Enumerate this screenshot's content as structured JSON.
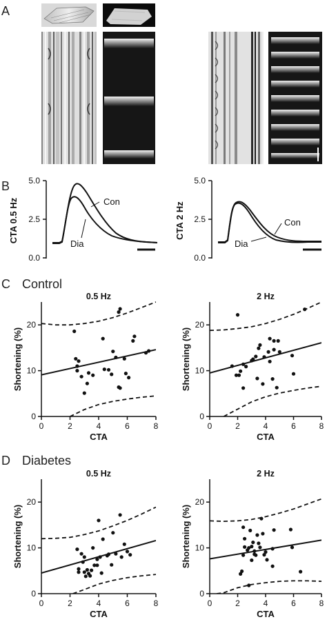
{
  "panels": {
    "a": {
      "letter": "A"
    },
    "b": {
      "letter": "B"
    },
    "c": {
      "letter": "C",
      "title": "Control"
    },
    "d": {
      "letter": "D",
      "title": "Diabetes"
    }
  },
  "traces": [
    {
      "ylabel": "CTA 0.5 Hz",
      "yticks": [
        "5.0",
        "2.5",
        "0.0"
      ],
      "labels": [
        "Con",
        "Dia"
      ],
      "ylim": [
        0,
        5
      ],
      "con_peak": 4.7,
      "dia_peak": 4.0,
      "baseline": 1.0,
      "scale_bar": true
    },
    {
      "ylabel": "CTA 2 Hz",
      "yticks": [
        "5.0",
        "2.5",
        "0.0"
      ],
      "labels": [
        "Con",
        "Dia"
      ],
      "ylim": [
        0,
        5
      ],
      "con_peak": 3.6,
      "dia_peak": 3.5,
      "baseline": 1.0,
      "scale_bar": true
    }
  ],
  "chart_data": [
    {
      "type": "scatter",
      "group": "Control",
      "title": "0.5 Hz",
      "xlabel": "CTA",
      "ylabel": "Shortening (%)",
      "xlim": [
        0,
        8
      ],
      "ylim": [
        0,
        25
      ],
      "xticks": [
        0,
        2,
        4,
        6,
        8
      ],
      "yticks": [
        0,
        10,
        20
      ],
      "points": [
        [
          2.3,
          18.6
        ],
        [
          2.4,
          12.6
        ],
        [
          2.5,
          11.0
        ],
        [
          2.5,
          10.0
        ],
        [
          2.6,
          12.1
        ],
        [
          2.8,
          8.7
        ],
        [
          3.0,
          5.1
        ],
        [
          3.2,
          7.2
        ],
        [
          3.3,
          9.5
        ],
        [
          3.6,
          9.0
        ],
        [
          4.3,
          17.0
        ],
        [
          4.4,
          10.3
        ],
        [
          4.7,
          10.2
        ],
        [
          4.9,
          9.2
        ],
        [
          5.0,
          14.2
        ],
        [
          5.2,
          12.9
        ],
        [
          5.4,
          6.4
        ],
        [
          5.4,
          22.8
        ],
        [
          5.5,
          23.5
        ],
        [
          5.5,
          6.2
        ],
        [
          5.8,
          12.6
        ],
        [
          5.9,
          9.4
        ],
        [
          6.1,
          8.5
        ],
        [
          6.4,
          16.5
        ],
        [
          6.5,
          17.5
        ],
        [
          7.3,
          13.9
        ],
        [
          7.5,
          14.3
        ]
      ],
      "fit": [
        [
          0,
          9.1
        ],
        [
          8,
          14.6
        ]
      ],
      "ci_upper": [
        [
          0,
          20.3
        ],
        [
          1,
          20.0
        ],
        [
          2,
          20.0
        ],
        [
          3,
          20.3
        ],
        [
          4,
          20.8
        ],
        [
          5,
          21.6
        ],
        [
          6,
          22.6
        ],
        [
          7,
          23.8
        ],
        [
          8,
          25.0
        ]
      ],
      "ci_lower": [
        [
          2.0,
          0.0
        ],
        [
          3,
          1.5
        ],
        [
          4,
          2.6
        ],
        [
          5,
          3.3
        ],
        [
          6,
          3.8
        ],
        [
          7,
          4.2
        ],
        [
          8,
          4.5
        ]
      ]
    },
    {
      "type": "scatter",
      "group": "Control",
      "title": "2 Hz",
      "xlabel": "CTA",
      "ylabel": "Shortening (%)",
      "xlim": [
        0,
        8
      ],
      "ylim": [
        0,
        25
      ],
      "xticks": [
        0,
        2,
        4,
        6,
        8
      ],
      "yticks": [
        0,
        10,
        20
      ],
      "points": [
        [
          1.6,
          11.0
        ],
        [
          1.9,
          9.0
        ],
        [
          2.0,
          22.2
        ],
        [
          2.1,
          9.0
        ],
        [
          2.2,
          9.9
        ],
        [
          2.4,
          6.2
        ],
        [
          2.4,
          11.4
        ],
        [
          2.6,
          10.9
        ],
        [
          3.0,
          12.2
        ],
        [
          3.1,
          12.5
        ],
        [
          3.3,
          13.1
        ],
        [
          3.4,
          8.3
        ],
        [
          3.5,
          14.9
        ],
        [
          3.6,
          15.6
        ],
        [
          3.8,
          7.1
        ],
        [
          3.9,
          13.0
        ],
        [
          4.2,
          14.1
        ],
        [
          4.3,
          12.0
        ],
        [
          4.3,
          17.0
        ],
        [
          4.5,
          8.2
        ],
        [
          4.6,
          14.6
        ],
        [
          4.6,
          16.5
        ],
        [
          4.8,
          6.3
        ],
        [
          4.9,
          16.5
        ],
        [
          5.0,
          14.1
        ],
        [
          5.9,
          13.3
        ],
        [
          6.0,
          9.3
        ],
        [
          6.8,
          23.4
        ]
      ],
      "fit": [
        [
          0,
          9.5
        ],
        [
          8,
          16.1
        ]
      ],
      "ci_upper": [
        [
          0,
          18.8
        ],
        [
          1,
          18.9
        ],
        [
          2,
          19.2
        ],
        [
          3,
          19.6
        ],
        [
          4,
          20.3
        ],
        [
          5,
          21.2
        ],
        [
          6,
          22.3
        ],
        [
          7,
          23.6
        ],
        [
          8,
          25.0
        ]
      ],
      "ci_lower": [
        [
          1.0,
          0.0
        ],
        [
          2,
          1.6
        ],
        [
          3,
          3.2
        ],
        [
          4,
          4.3
        ],
        [
          5,
          5.1
        ],
        [
          6,
          5.7
        ],
        [
          7,
          6.2
        ],
        [
          8,
          6.6
        ]
      ]
    },
    {
      "type": "scatter",
      "group": "Diabetes",
      "title": "0.5 Hz",
      "xlabel": "CTA",
      "ylabel": "Shortening (%)",
      "xlim": [
        0,
        8
      ],
      "ylim": [
        0,
        25
      ],
      "xticks": [
        0,
        2,
        4,
        6,
        8
      ],
      "yticks": [
        0,
        10,
        20
      ],
      "points": [
        [
          2.5,
          9.7
        ],
        [
          2.6,
          5.4
        ],
        [
          2.6,
          4.7
        ],
        [
          2.8,
          8.7
        ],
        [
          2.9,
          6.9
        ],
        [
          3.0,
          8.0
        ],
        [
          3.0,
          4.7
        ],
        [
          3.1,
          3.8
        ],
        [
          3.2,
          5.2
        ],
        [
          3.3,
          4.4
        ],
        [
          3.4,
          3.9
        ],
        [
          3.5,
          5.1
        ],
        [
          3.6,
          10.0
        ],
        [
          3.7,
          6.2
        ],
        [
          3.9,
          6.2
        ],
        [
          3.9,
          7.5
        ],
        [
          4.0,
          16.0
        ],
        [
          4.1,
          8.0
        ],
        [
          4.2,
          4.5
        ],
        [
          4.3,
          11.9
        ],
        [
          4.6,
          8.3
        ],
        [
          4.7,
          8.6
        ],
        [
          4.9,
          6.3
        ],
        [
          5.0,
          13.3
        ],
        [
          5.2,
          8.7
        ],
        [
          5.5,
          17.2
        ],
        [
          5.6,
          8.0
        ],
        [
          5.8,
          10.8
        ],
        [
          6.0,
          9.2
        ],
        [
          6.2,
          8.5
        ]
      ],
      "fit": [
        [
          0,
          4.5
        ],
        [
          8,
          11.6
        ]
      ],
      "ci_upper": [
        [
          0,
          12.0
        ],
        [
          1,
          12.1
        ],
        [
          2,
          12.3
        ],
        [
          3,
          12.9
        ],
        [
          4,
          13.7
        ],
        [
          5,
          14.8
        ],
        [
          6,
          16.0
        ],
        [
          7,
          17.4
        ],
        [
          8,
          18.9
        ]
      ],
      "ci_lower": [
        [
          2.2,
          0.0
        ],
        [
          3,
          0.9
        ],
        [
          4,
          2.1
        ],
        [
          5,
          2.9
        ],
        [
          6,
          3.5
        ],
        [
          7,
          3.9
        ],
        [
          8,
          4.2
        ]
      ]
    },
    {
      "type": "scatter",
      "group": "Diabetes",
      "title": "2 Hz",
      "xlabel": "CTA",
      "ylabel": "Shortening (%)",
      "xlim": [
        0,
        8
      ],
      "ylim": [
        0,
        25
      ],
      "xticks": [
        0,
        2,
        4,
        6,
        8
      ],
      "yticks": [
        0,
        10,
        20
      ],
      "points": [
        [
          2.2,
          4.3
        ],
        [
          2.3,
          4.9
        ],
        [
          2.4,
          14.5
        ],
        [
          2.4,
          8.4
        ],
        [
          2.5,
          10.2
        ],
        [
          2.5,
          12.0
        ],
        [
          2.7,
          9.5
        ],
        [
          2.8,
          10.0
        ],
        [
          2.8,
          1.8
        ],
        [
          2.9,
          13.8
        ],
        [
          3.0,
          10.3
        ],
        [
          3.0,
          7.3
        ],
        [
          3.1,
          11.2
        ],
        [
          3.2,
          9.3
        ],
        [
          3.2,
          8.6
        ],
        [
          3.3,
          8.4
        ],
        [
          3.4,
          12.8
        ],
        [
          3.5,
          11.0
        ],
        [
          3.6,
          10.1
        ],
        [
          3.7,
          16.4
        ],
        [
          3.8,
          13.1
        ],
        [
          3.9,
          8.5
        ],
        [
          4.0,
          9.1
        ],
        [
          4.1,
          7.4
        ],
        [
          4.5,
          9.8
        ],
        [
          4.5,
          6.0
        ],
        [
          4.6,
          13.9
        ],
        [
          5.8,
          14.0
        ],
        [
          5.9,
          10.1
        ],
        [
          6.5,
          4.8
        ]
      ],
      "fit": [
        [
          0,
          7.6
        ],
        [
          8,
          11.7
        ]
      ],
      "ci_upper": [
        [
          0,
          15.9
        ],
        [
          1,
          15.8
        ],
        [
          2,
          15.9
        ],
        [
          3,
          16.2
        ],
        [
          4,
          16.8
        ],
        [
          5,
          17.6
        ],
        [
          6,
          18.5
        ],
        [
          7,
          19.6
        ],
        [
          8,
          20.7
        ]
      ],
      "ci_lower": [
        [
          0.5,
          0.0
        ],
        [
          1,
          0.2
        ],
        [
          2,
          1.3
        ],
        [
          3,
          2.0
        ],
        [
          4,
          2.4
        ],
        [
          5,
          2.7
        ],
        [
          6,
          2.8
        ],
        [
          7,
          2.8
        ],
        [
          8,
          2.7
        ]
      ]
    }
  ]
}
